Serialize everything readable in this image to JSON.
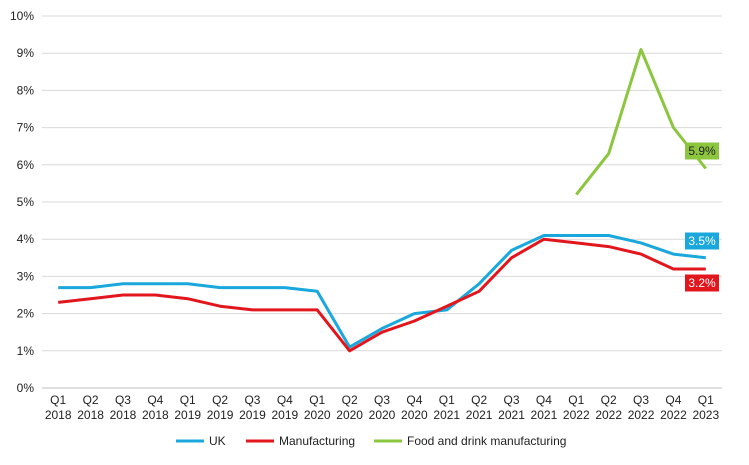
{
  "chart_data": {
    "type": "line",
    "title": "",
    "xlabel": "",
    "ylabel": "",
    "ylim": [
      0,
      10
    ],
    "yticks": [
      "0%",
      "1%",
      "2%",
      "3%",
      "4%",
      "5%",
      "6%",
      "7%",
      "8%",
      "9%",
      "10%"
    ],
    "grid": true,
    "legend_position": "bottom",
    "categories": [
      {
        "q": "Q1",
        "y": "2018"
      },
      {
        "q": "Q2",
        "y": "2018"
      },
      {
        "q": "Q3",
        "y": "2018"
      },
      {
        "q": "Q4",
        "y": "2018"
      },
      {
        "q": "Q1",
        "y": "2019"
      },
      {
        "q": "Q2",
        "y": "2019"
      },
      {
        "q": "Q3",
        "y": "2019"
      },
      {
        "q": "Q4",
        "y": "2019"
      },
      {
        "q": "Q1",
        "y": "2020"
      },
      {
        "q": "Q2",
        "y": "2020"
      },
      {
        "q": "Q3",
        "y": "2020"
      },
      {
        "q": "Q4",
        "y": "2020"
      },
      {
        "q": "Q1",
        "y": "2021"
      },
      {
        "q": "Q2",
        "y": "2021"
      },
      {
        "q": "Q3",
        "y": "2021"
      },
      {
        "q": "Q4",
        "y": "2021"
      },
      {
        "q": "Q1",
        "y": "2022"
      },
      {
        "q": "Q2",
        "y": "2022"
      },
      {
        "q": "Q3",
        "y": "2022"
      },
      {
        "q": "Q4",
        "y": "2022"
      },
      {
        "q": "Q1",
        "y": "2023"
      }
    ],
    "series": [
      {
        "name": "UK",
        "color": "#1aa7dc",
        "values": [
          2.7,
          2.7,
          2.8,
          2.8,
          2.8,
          2.7,
          2.7,
          2.7,
          2.6,
          1.1,
          1.6,
          2.0,
          2.1,
          2.8,
          3.7,
          4.1,
          4.1,
          4.1,
          3.9,
          3.6,
          3.5
        ],
        "end_label": "3.5%"
      },
      {
        "name": "Manufacturing",
        "color": "#e2171e",
        "values": [
          2.3,
          2.4,
          2.5,
          2.5,
          2.4,
          2.2,
          2.1,
          2.1,
          2.1,
          1.0,
          1.5,
          1.8,
          2.2,
          2.6,
          3.5,
          4.0,
          3.9,
          3.8,
          3.6,
          3.2,
          3.2
        ],
        "end_label": "3.2%"
      },
      {
        "name": "Food and drink manufacturing",
        "color": "#8cc63f",
        "values": [
          null,
          null,
          null,
          null,
          null,
          null,
          null,
          null,
          null,
          null,
          null,
          null,
          null,
          null,
          null,
          null,
          5.2,
          6.3,
          9.1,
          7.0,
          5.9
        ],
        "end_label": "5.9%"
      }
    ]
  }
}
